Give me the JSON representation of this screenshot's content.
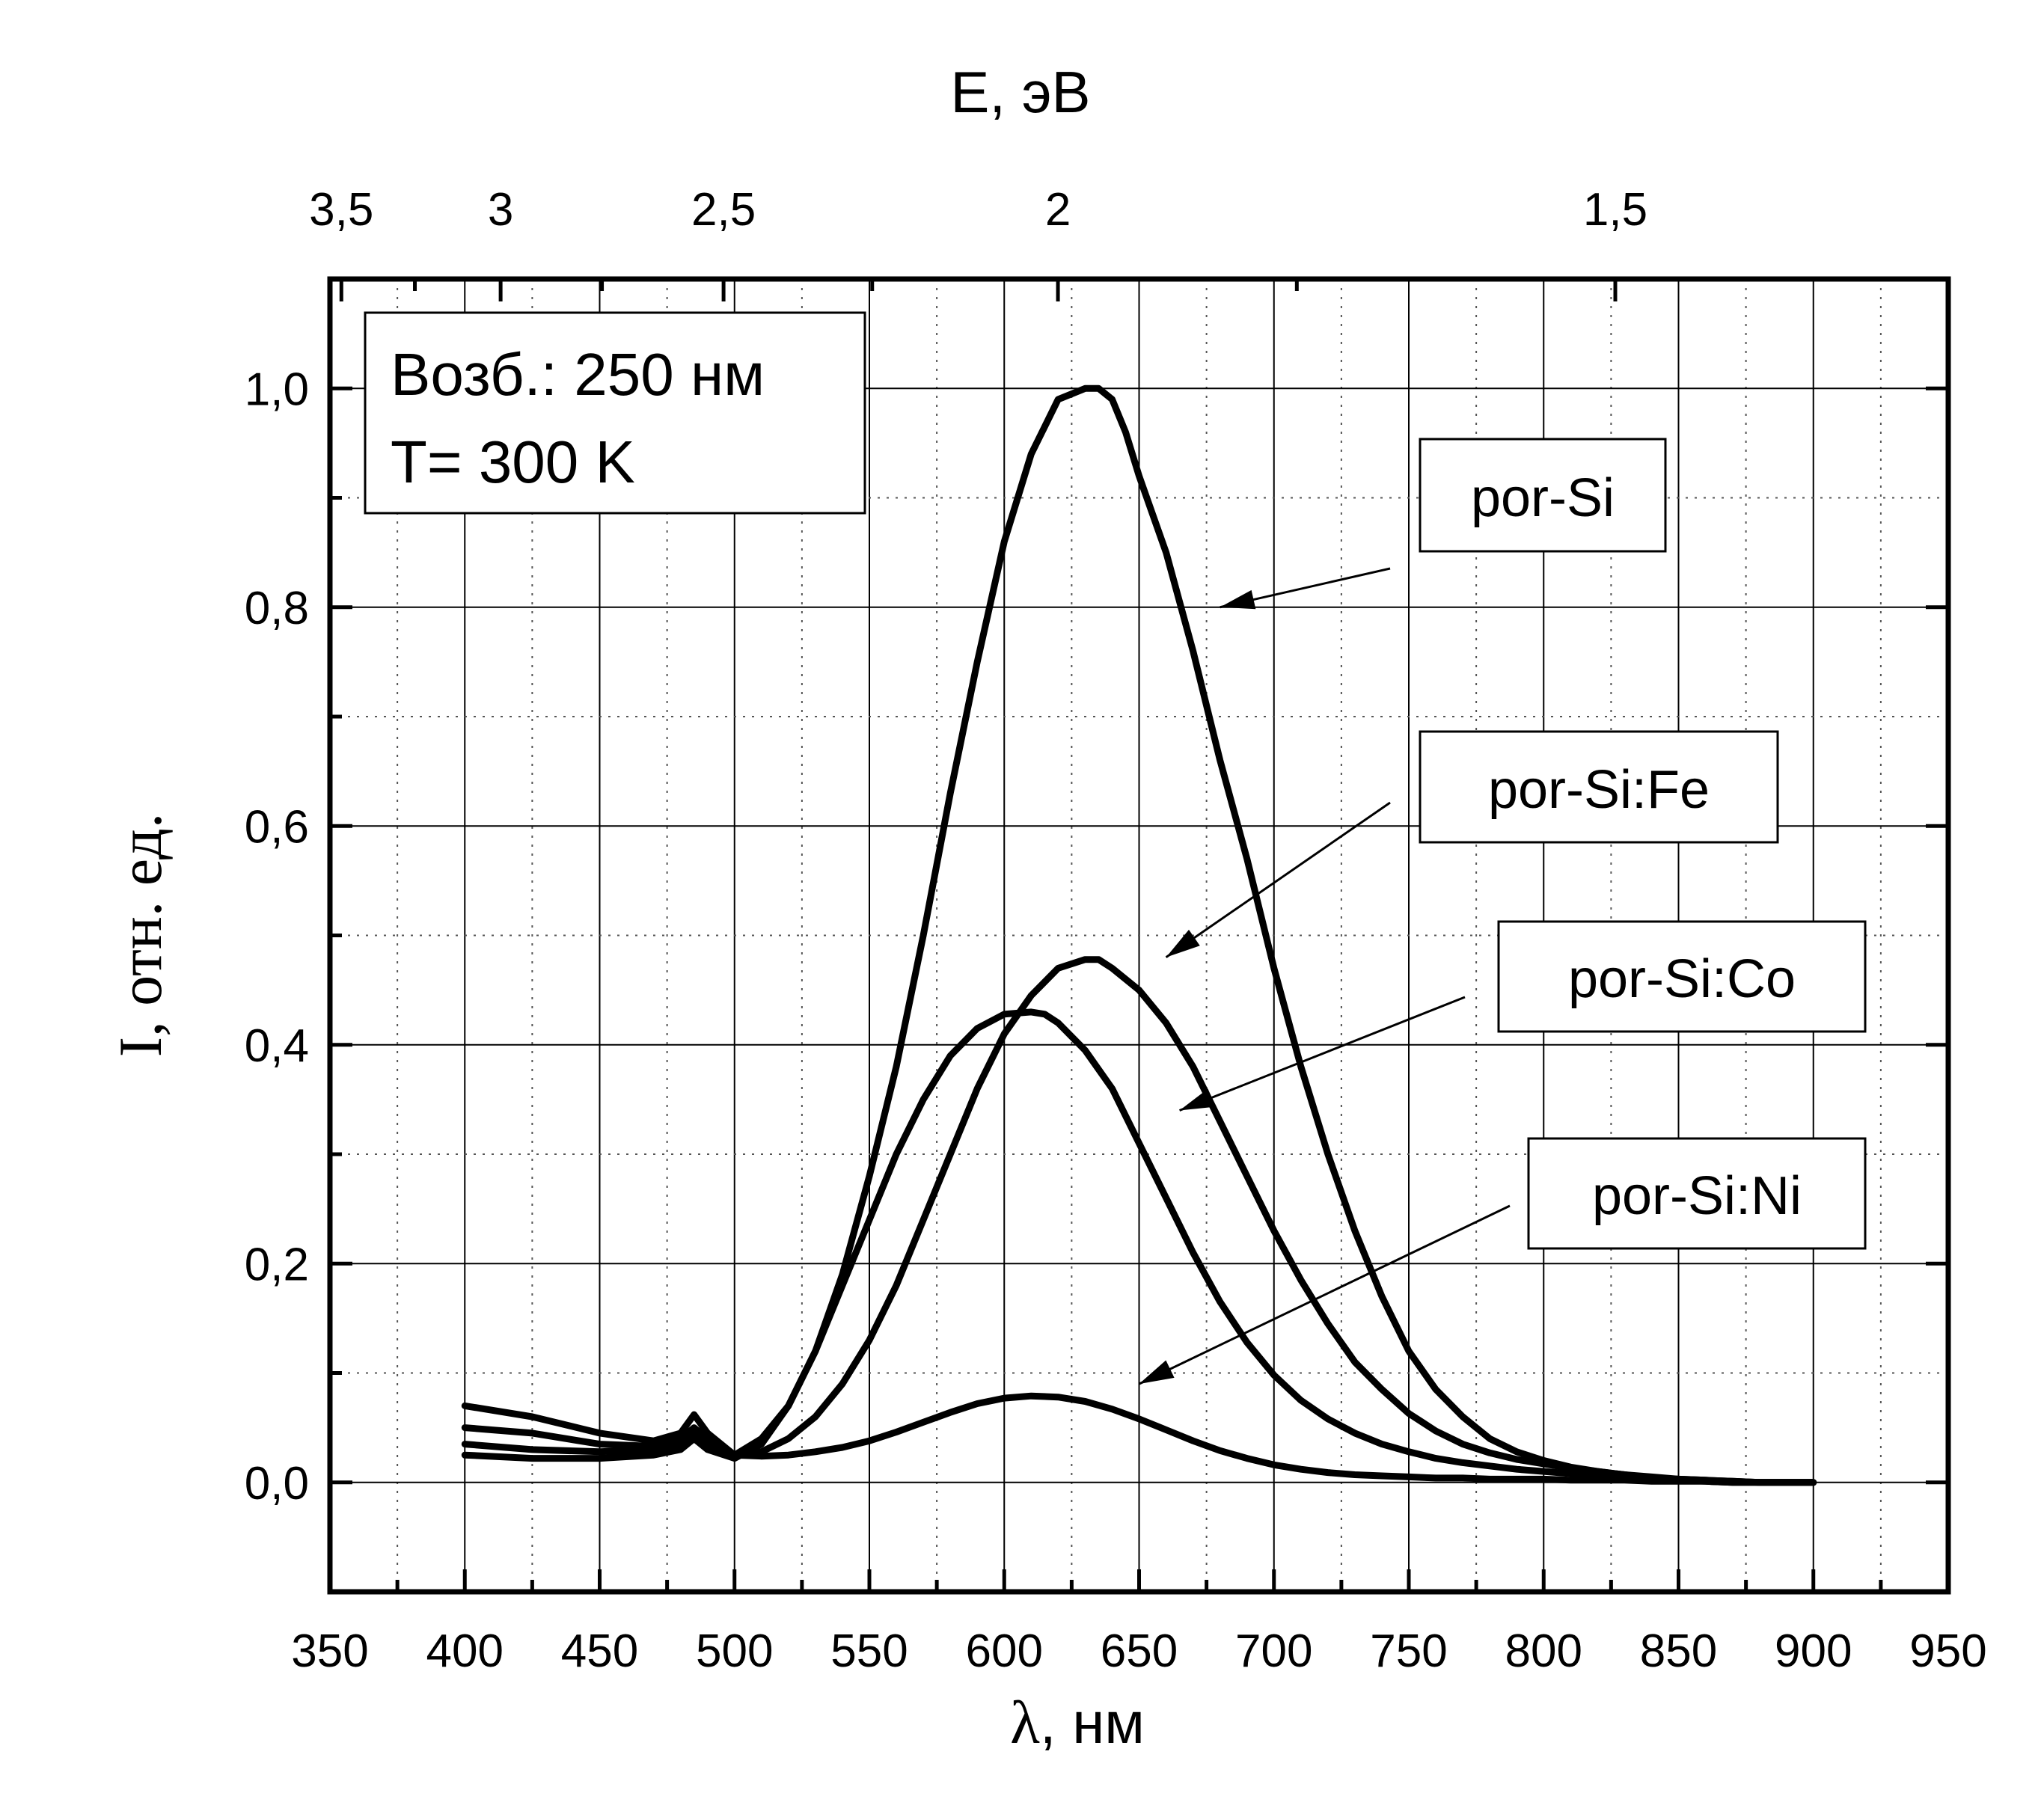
{
  "chart_data": {
    "type": "line",
    "xlabel": "λ, нм",
    "xlabel_symbol": "λ",
    "xlabel_unit": ", нм",
    "ylabel": "I, отн. ед.",
    "top_xlabel": "E, эВ",
    "xlim": [
      350,
      950
    ],
    "ylim": [
      -0.1,
      1.1
    ],
    "x_ticks": [
      350,
      400,
      450,
      500,
      550,
      600,
      650,
      700,
      750,
      800,
      850,
      900,
      950
    ],
    "x_tick_labels": [
      "350",
      "400",
      "450",
      "500",
      "550",
      "600",
      "650",
      "700",
      "750",
      "800",
      "850",
      "900",
      "950"
    ],
    "y_ticks": [
      0.0,
      0.2,
      0.4,
      0.6,
      0.8,
      1.0
    ],
    "y_tick_labels": [
      "0,0",
      "0,2",
      "0,4",
      "0,6",
      "0,8",
      "1,0"
    ],
    "top_ticks": [
      3.5,
      3.0,
      2.5,
      2.0,
      1.5
    ],
    "top_tick_labels": [
      "3,5",
      "3",
      "2,5",
      "2",
      "1,5"
    ],
    "top_minor_ticks": [
      3.25,
      2.75,
      2.25,
      1.75
    ],
    "grid": true,
    "info_box": [
      "Возб.: 250 нм",
      "T= 300 K"
    ],
    "series": [
      {
        "name": "por-Si",
        "x": [
          400,
          425,
          450,
          470,
          480,
          485,
          490,
          500,
          510,
          520,
          530,
          540,
          550,
          560,
          570,
          580,
          590,
          600,
          610,
          620,
          630,
          635,
          640,
          645,
          650,
          660,
          670,
          680,
          690,
          700,
          710,
          720,
          730,
          740,
          750,
          760,
          770,
          780,
          790,
          800,
          810,
          820,
          830,
          840,
          850,
          860,
          870,
          880,
          890,
          900
        ],
        "y": [
          0.025,
          0.022,
          0.022,
          0.025,
          0.03,
          0.04,
          0.03,
          0.022,
          0.035,
          0.07,
          0.12,
          0.19,
          0.28,
          0.38,
          0.5,
          0.63,
          0.75,
          0.86,
          0.94,
          0.99,
          1.0,
          1.0,
          0.99,
          0.96,
          0.92,
          0.85,
          0.76,
          0.66,
          0.57,
          0.47,
          0.38,
          0.3,
          0.23,
          0.17,
          0.12,
          0.085,
          0.06,
          0.04,
          0.028,
          0.02,
          0.014,
          0.01,
          0.007,
          0.004,
          0.003,
          0.002,
          0.001,
          0.0,
          0.0,
          0.0
        ]
      },
      {
        "name": "por-Si:Fe",
        "x": [
          400,
          425,
          450,
          470,
          480,
          485,
          490,
          500,
          510,
          520,
          530,
          540,
          550,
          560,
          570,
          580,
          590,
          600,
          610,
          620,
          630,
          635,
          640,
          650,
          660,
          670,
          680,
          690,
          700,
          710,
          720,
          730,
          740,
          750,
          760,
          770,
          780,
          790,
          800,
          810,
          820,
          830,
          840,
          850,
          860,
          870,
          880,
          890,
          900
        ],
        "y": [
          0.035,
          0.03,
          0.028,
          0.03,
          0.035,
          0.045,
          0.035,
          0.025,
          0.028,
          0.04,
          0.06,
          0.09,
          0.13,
          0.18,
          0.24,
          0.3,
          0.36,
          0.41,
          0.445,
          0.47,
          0.478,
          0.478,
          0.47,
          0.45,
          0.42,
          0.38,
          0.33,
          0.28,
          0.23,
          0.185,
          0.145,
          0.11,
          0.085,
          0.063,
          0.047,
          0.035,
          0.027,
          0.021,
          0.017,
          0.013,
          0.01,
          0.007,
          0.005,
          0.003,
          0.002,
          0.001,
          0.0,
          0.0,
          0.0
        ]
      },
      {
        "name": "por-Si:Co",
        "x": [
          400,
          425,
          450,
          470,
          480,
          485,
          490,
          500,
          510,
          520,
          530,
          540,
          550,
          560,
          570,
          580,
          590,
          600,
          610,
          615,
          620,
          630,
          640,
          650,
          660,
          670,
          680,
          690,
          700,
          710,
          720,
          730,
          740,
          750,
          760,
          770,
          780,
          790,
          800,
          810,
          820,
          830,
          840,
          850,
          860,
          870,
          880,
          890,
          900
        ],
        "y": [
          0.05,
          0.045,
          0.035,
          0.033,
          0.04,
          0.05,
          0.04,
          0.025,
          0.04,
          0.07,
          0.12,
          0.18,
          0.24,
          0.3,
          0.35,
          0.39,
          0.415,
          0.428,
          0.43,
          0.428,
          0.42,
          0.395,
          0.36,
          0.31,
          0.26,
          0.21,
          0.165,
          0.128,
          0.098,
          0.075,
          0.058,
          0.045,
          0.035,
          0.028,
          0.022,
          0.018,
          0.015,
          0.012,
          0.01,
          0.008,
          0.006,
          0.004,
          0.003,
          0.002,
          0.001,
          0.0,
          0.0,
          0.0,
          0.0
        ]
      },
      {
        "name": "por-Si:Ni",
        "x": [
          400,
          425,
          450,
          470,
          480,
          485,
          490,
          500,
          510,
          520,
          530,
          540,
          550,
          560,
          570,
          580,
          590,
          600,
          610,
          620,
          630,
          640,
          650,
          660,
          670,
          680,
          690,
          700,
          710,
          720,
          730,
          740,
          750,
          760,
          770,
          780,
          790,
          800,
          810,
          820,
          830,
          840,
          850,
          860,
          870,
          880,
          890,
          900
        ],
        "y": [
          0.07,
          0.06,
          0.045,
          0.038,
          0.045,
          0.062,
          0.045,
          0.025,
          0.024,
          0.025,
          0.028,
          0.032,
          0.038,
          0.046,
          0.055,
          0.064,
          0.072,
          0.077,
          0.079,
          0.078,
          0.074,
          0.067,
          0.058,
          0.048,
          0.038,
          0.029,
          0.022,
          0.016,
          0.012,
          0.009,
          0.007,
          0.006,
          0.005,
          0.004,
          0.004,
          0.003,
          0.003,
          0.003,
          0.002,
          0.002,
          0.002,
          0.001,
          0.001,
          0.001,
          0.0,
          0.0,
          0.0,
          0.0
        ]
      }
    ],
    "annotations": [
      {
        "text": "por-Si",
        "target_x": 680,
        "target_y": 0.8
      },
      {
        "text": "por-Si:Fe",
        "target_x": 660,
        "target_y": 0.48
      },
      {
        "text": "por-Si:Co",
        "target_x": 665,
        "target_y": 0.34
      },
      {
        "text": "por-Si:Ni",
        "target_x": 650,
        "target_y": 0.09
      }
    ]
  }
}
